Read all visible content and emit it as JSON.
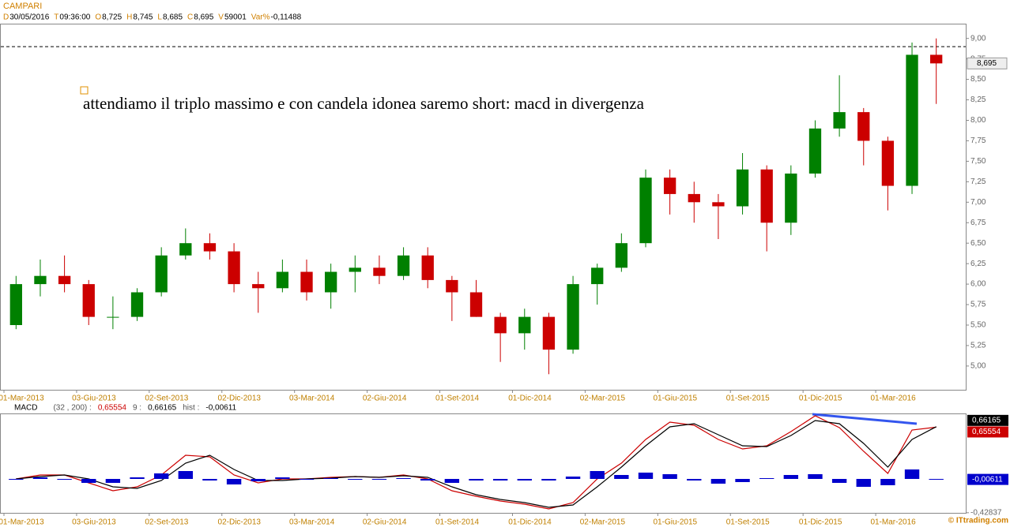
{
  "chart_data": [
    {
      "type": "candlestick",
      "title": "CAMPARI",
      "info": [
        {
          "label": "D",
          "value": "30/05/2016"
        },
        {
          "label": "T",
          "value": "09:36:00"
        },
        {
          "label": "O",
          "value": "8,725"
        },
        {
          "label": "H",
          "value": "8,745"
        },
        {
          "label": "L",
          "value": "8,685"
        },
        {
          "label": "C",
          "value": "8,695"
        },
        {
          "label": "V",
          "value": "59001"
        },
        {
          "label": "Var%",
          "value": "-0,11488"
        }
      ],
      "annotation": "attendiamo il triplo massimo e con candela idonea saremo short: macd in divergenza",
      "categories": [
        "01-Mar-2013",
        null,
        null,
        "03-Giu-2013",
        null,
        null,
        "02-Set-2013",
        null,
        null,
        "02-Dic-2013",
        null,
        null,
        "03-Mar-2014",
        null,
        null,
        "02-Giu-2014",
        null,
        null,
        "01-Set-2014",
        null,
        null,
        "01-Dic-2014",
        null,
        null,
        "02-Mar-2015",
        null,
        null,
        "01-Giu-2015",
        null,
        null,
        "01-Set-2015",
        null,
        null,
        "01-Dic-2015",
        null,
        null,
        "01-Mar-2016",
        null,
        null
      ],
      "open": [
        5.5,
        6.0,
        6.1,
        6.0,
        5.6,
        5.6,
        5.9,
        6.35,
        6.5,
        6.4,
        6.0,
        5.95,
        6.15,
        5.9,
        6.15,
        6.2,
        6.1,
        6.35,
        6.05,
        5.9,
        5.6,
        5.4,
        5.6,
        5.2,
        6.0,
        6.2,
        6.5,
        7.3,
        7.1,
        7.0,
        6.95,
        7.4,
        6.75,
        7.35,
        7.9,
        8.1,
        7.75,
        7.2,
        8.8
      ],
      "high": [
        6.1,
        6.3,
        6.35,
        6.05,
        5.85,
        5.95,
        6.45,
        6.68,
        6.62,
        6.5,
        6.15,
        6.3,
        6.3,
        6.25,
        6.35,
        6.35,
        6.45,
        6.45,
        6.1,
        6.05,
        5.65,
        5.7,
        5.65,
        6.1,
        6.25,
        6.62,
        7.4,
        7.4,
        7.25,
        7.1,
        7.6,
        7.45,
        7.45,
        8.0,
        8.55,
        8.15,
        7.8,
        8.95,
        9.0
      ],
      "low": [
        5.45,
        5.85,
        5.9,
        5.5,
        5.45,
        5.55,
        5.85,
        6.3,
        6.3,
        5.9,
        5.65,
        5.9,
        5.8,
        5.7,
        5.9,
        6.0,
        6.05,
        5.95,
        5.55,
        5.6,
        5.05,
        5.2,
        4.9,
        5.15,
        5.75,
        6.15,
        6.45,
        6.85,
        6.75,
        6.55,
        6.85,
        6.4,
        6.6,
        7.3,
        7.8,
        7.45,
        6.9,
        7.1,
        8.2
      ],
      "close": [
        6.0,
        6.1,
        6.0,
        5.6,
        5.6,
        5.9,
        6.35,
        6.5,
        6.4,
        6.0,
        5.95,
        6.15,
        5.9,
        6.15,
        6.2,
        6.1,
        6.35,
        6.05,
        5.9,
        5.6,
        5.4,
        5.6,
        5.2,
        6.0,
        6.2,
        6.5,
        7.3,
        7.1,
        7.0,
        6.95,
        7.4,
        6.75,
        7.35,
        7.9,
        8.1,
        7.75,
        7.2,
        8.8,
        8.695
      ],
      "up_color": "#008000",
      "down_color": "#cc0000",
      "hline": 8.9,
      "ylim": [
        4.71,
        9.18
      ],
      "yticks": [
        {
          "value": 5,
          "label": "5,00"
        },
        {
          "value": 5.25,
          "label": "5,25"
        },
        {
          "value": 5.5,
          "label": "5,50"
        },
        {
          "value": 5.75,
          "label": "5,75"
        },
        {
          "value": 6,
          "label": "6,00"
        },
        {
          "value": 6.25,
          "label": "6,25"
        },
        {
          "value": 6.5,
          "label": "6,50"
        },
        {
          "value": 6.75,
          "label": "6,75"
        },
        {
          "value": 7,
          "label": "7,00"
        },
        {
          "value": 7.25,
          "label": "7,25"
        },
        {
          "value": 7.5,
          "label": "7,50"
        },
        {
          "value": 7.75,
          "label": "7,75"
        },
        {
          "value": 8,
          "label": "8,00"
        },
        {
          "value": 8.25,
          "label": "8,25"
        },
        {
          "value": 8.5,
          "label": "8,50"
        },
        {
          "value": 8.75,
          "label": "8,75"
        },
        {
          "value": 9,
          "label": "9,00"
        }
      ]
    },
    {
      "type": "line",
      "title": "MACD",
      "info": [
        "(32 , 200) :",
        "0,65554",
        "9 :",
        "0,66165",
        "hist :",
        "-0,00611"
      ],
      "categories": [
        "01-Mar-2013",
        null,
        null,
        "03-Giu-2013",
        null,
        null,
        "02-Set-2013",
        null,
        null,
        "02-Dic-2013",
        null,
        null,
        "03-Mar-2014",
        null,
        null,
        "02-Giu-2014",
        null,
        null,
        "01-Set-2014",
        null,
        null,
        "01-Dic-2014",
        null,
        null,
        "02-Mar-2015",
        null,
        null,
        "01-Giu-2015",
        null,
        null,
        "01-Set-2015",
        null,
        null,
        "01-Dic-2015",
        null,
        null,
        "01-Mar-2016",
        null,
        null
      ],
      "series": [
        {
          "color": "#cc0000",
          "kind": "line",
          "values": [
            0.0,
            0.05,
            0.05,
            -0.05,
            -0.15,
            -0.1,
            0.05,
            0.3,
            0.28,
            0.05,
            -0.05,
            0.0,
            0.0,
            0.02,
            0.03,
            0.02,
            0.05,
            0.0,
            -0.15,
            -0.22,
            -0.28,
            -0.32,
            -0.38,
            -0.3,
            0.0,
            0.2,
            0.5,
            0.72,
            0.68,
            0.5,
            0.38,
            0.42,
            0.6,
            0.8,
            0.65,
            0.35,
            0.07,
            0.62,
            0.65554
          ]
        },
        {
          "color": "#000000",
          "kind": "line",
          "values": [
            0.0,
            0.03,
            0.05,
            0.0,
            -0.1,
            -0.12,
            -0.02,
            0.2,
            0.3,
            0.12,
            -0.02,
            -0.02,
            0.0,
            0.01,
            0.03,
            0.02,
            0.04,
            0.02,
            -0.1,
            -0.2,
            -0.26,
            -0.3,
            -0.36,
            -0.33,
            -0.1,
            0.15,
            0.42,
            0.66,
            0.7,
            0.56,
            0.42,
            0.41,
            0.55,
            0.74,
            0.7,
            0.45,
            0.15,
            0.5,
            0.66165
          ]
        },
        {
          "color": "#0000cc",
          "kind": "bar",
          "values": [
            0.0,
            0.02,
            0.0,
            -0.05,
            -0.05,
            0.02,
            0.07,
            0.1,
            -0.02,
            -0.07,
            -0.03,
            0.02,
            0.0,
            0.01,
            0.0,
            0.0,
            0.01,
            -0.02,
            -0.05,
            -0.02,
            -0.02,
            -0.02,
            -0.02,
            0.03,
            0.1,
            0.05,
            0.08,
            0.06,
            -0.02,
            -0.06,
            -0.04,
            0.01,
            0.05,
            0.06,
            -0.05,
            -0.1,
            -0.08,
            0.12,
            -0.00611
          ]
        }
      ],
      "ylim": [
        -0.43,
        0.82
      ],
      "yticks": [
        {
          "value": -0.42837,
          "label": "-0,42837"
        }
      ]
    }
  ],
  "footer": "© ITtrading.com"
}
